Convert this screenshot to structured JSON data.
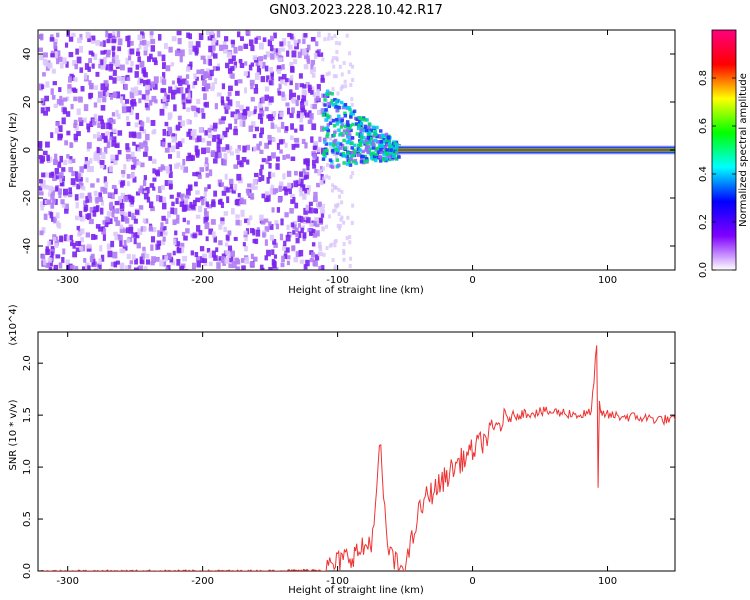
{
  "title": "GN03.2023.228.10.42.R17",
  "chart_data": [
    {
      "type": "heatmap",
      "xlabel": "Height of straight line (km)",
      "ylabel": "Frequency (Hz)",
      "xlim": [
        -322,
        150
      ],
      "ylim": [
        -50,
        50
      ],
      "x_ticks": [
        -300,
        -200,
        -100,
        0,
        100
      ],
      "x_tick_labels": [
        "-300",
        "-200",
        "-100",
        "0",
        "100"
      ],
      "y_ticks": [
        -40,
        -20,
        0,
        20,
        40
      ],
      "y_tick_labels": [
        "-40",
        "-20",
        "0",
        "20",
        "40"
      ],
      "colorbar": {
        "label": "Normalized spectral amplitude",
        "range": [
          0,
          1
        ],
        "ticks": [
          0.0,
          0.2,
          0.4,
          0.6,
          0.8
        ],
        "tick_labels": [
          "0.0",
          "0.2",
          "0.4",
          "0.6",
          "0.8"
        ],
        "colors": [
          "#ffffff",
          "#7f00ff",
          "#0000ff",
          "#00ffff",
          "#00ff00",
          "#ffff00",
          "#ff0000",
          "#ff0080"
        ]
      },
      "regions": [
        {
          "x": [
            -322,
            -112
          ],
          "kind": "broadband noise",
          "level": 0.25
        },
        {
          "x": [
            -112,
            -55
          ],
          "kind": "scattered signal",
          "center_hz": [
            10,
            0
          ],
          "level": 0.6
        },
        {
          "x": [
            -55,
            150
          ],
          "kind": "narrow carrier",
          "center_hz": 0,
          "level": 1.0
        }
      ],
      "grid": false
    },
    {
      "type": "line",
      "xlabel": "Height of straight line (km)",
      "ylabel": "SNR (10 * v/v)",
      "y_multiplier": "(x10^4)",
      "xlim": [
        -322,
        150
      ],
      "ylim": [
        0,
        2.3
      ],
      "x_ticks": [
        -300,
        -200,
        -100,
        0,
        100
      ],
      "x_tick_labels": [
        "-300",
        "-200",
        "-100",
        "0",
        "100"
      ],
      "y_ticks": [
        0.0,
        0.5,
        1.0,
        1.5,
        2.0
      ],
      "y_tick_labels": [
        "0.0",
        "0.5",
        "1.0",
        "1.5",
        "2.0"
      ],
      "color": "#ee3333",
      "x": [
        -322,
        -300,
        -250,
        -200,
        -150,
        -112,
        -105,
        -100,
        -95,
        -90,
        -85,
        -80,
        -75,
        -72,
        -70,
        -68,
        -66,
        -64,
        -62,
        -60,
        -58,
        -55,
        -52,
        -50,
        -48,
        -45,
        -42,
        -40,
        -38,
        -35,
        -30,
        -25,
        -20,
        -15,
        -10,
        -5,
        0,
        5,
        10,
        15,
        20,
        25,
        30,
        35,
        40,
        50,
        60,
        70,
        80,
        88,
        92,
        93,
        94,
        95,
        96,
        98,
        100,
        110,
        120,
        130,
        140,
        150
      ],
      "y": [
        0.0,
        0.0,
        0.0,
        0.0,
        0.0,
        0.01,
        0.04,
        0.08,
        0.12,
        0.15,
        0.18,
        0.22,
        0.3,
        0.55,
        0.95,
        1.25,
        0.7,
        0.35,
        0.22,
        0.14,
        0.08,
        0.05,
        0.04,
        0.06,
        0.12,
        0.28,
        0.45,
        0.55,
        0.6,
        0.7,
        0.76,
        0.82,
        0.9,
        0.98,
        1.05,
        1.1,
        1.16,
        1.22,
        1.28,
        1.35,
        1.42,
        1.46,
        1.49,
        1.51,
        1.52,
        1.53,
        1.53,
        1.52,
        1.5,
        1.52,
        2.2,
        0.8,
        1.6,
        1.5,
        1.52,
        1.51,
        1.5,
        1.49,
        1.48,
        1.47,
        1.46,
        1.45
      ],
      "grid": false
    }
  ]
}
